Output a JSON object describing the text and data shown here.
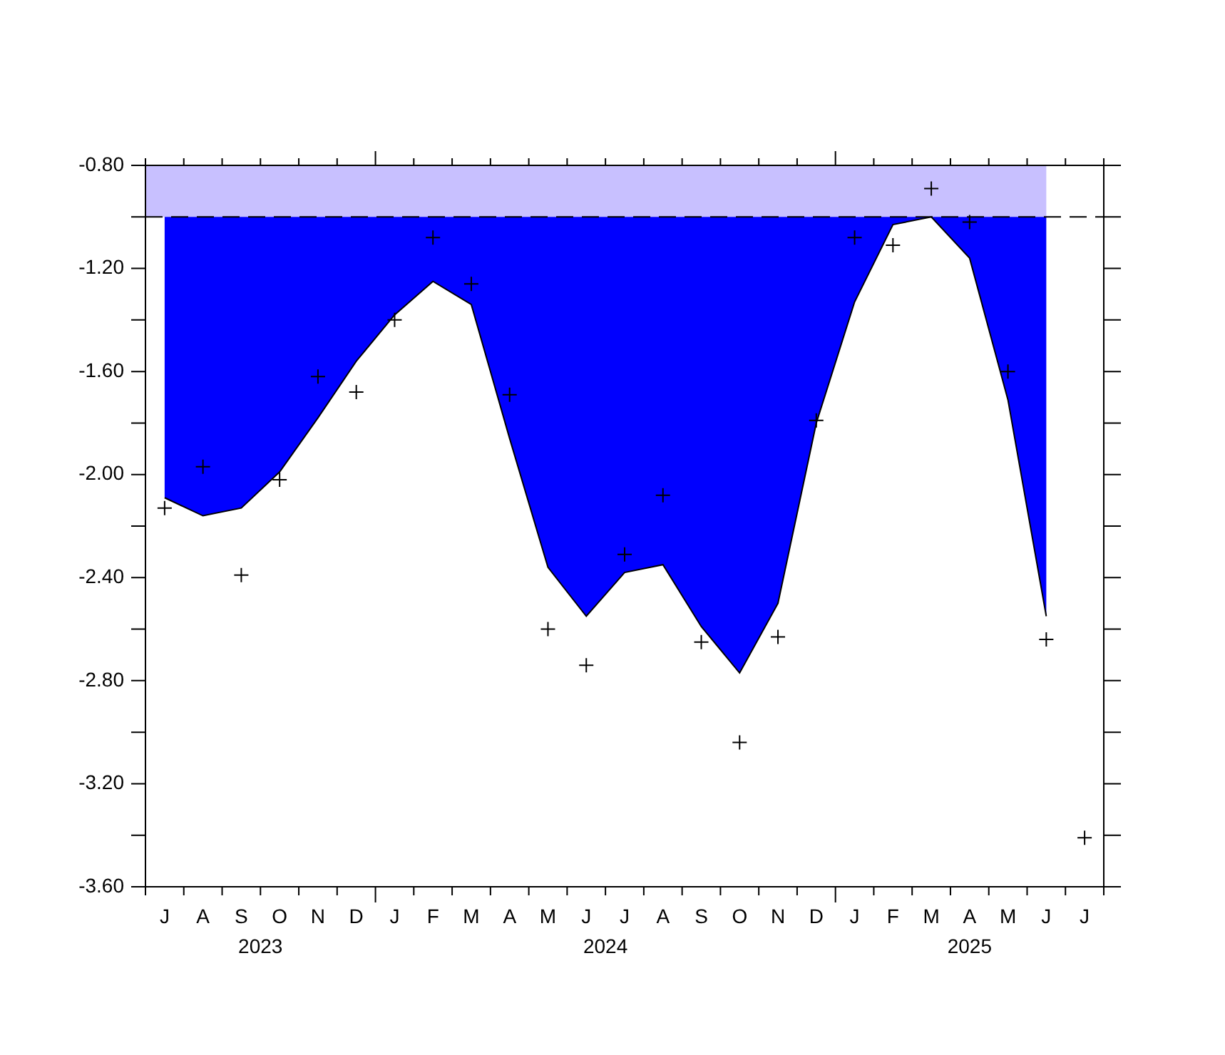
{
  "chart_data": {
    "type": "area",
    "categories": [
      "J",
      "A",
      "S",
      "O",
      "N",
      "D",
      "J",
      "F",
      "M",
      "A",
      "M",
      "J",
      "J",
      "A",
      "S",
      "O",
      "N",
      "D",
      "J",
      "F",
      "M",
      "A",
      "M",
      "J",
      "J"
    ],
    "x2lim": [
      "2023-07-01",
      "2025-08-01"
    ],
    "x2ticks": [
      {
        "value": "2023-10-01",
        "label": "2023"
      },
      {
        "value": "2024-07-01",
        "label": "2024"
      },
      {
        "value": "2025-04-16",
        "label": "2025"
      }
    ],
    "ylim": [
      -3.6,
      -0.8
    ],
    "yticks": [
      {
        "value": -0.8,
        "label": "-0.80"
      },
      {
        "value": -1.0,
        "label": null
      },
      {
        "value": -1.2,
        "label": "-1.20"
      },
      {
        "value": -1.4,
        "label": null
      },
      {
        "value": -1.6,
        "label": "-1.60"
      },
      {
        "value": -1.8,
        "label": null
      },
      {
        "value": -2.0,
        "label": "-2.00"
      },
      {
        "value": -2.2,
        "label": null
      },
      {
        "value": -2.4,
        "label": "-2.40"
      },
      {
        "value": -2.6,
        "label": null
      },
      {
        "value": -2.8,
        "label": "-2.80"
      },
      {
        "value": -3.0,
        "label": null
      },
      {
        "value": -3.2,
        "label": "-3.20"
      },
      {
        "value": -3.4,
        "label": null
      },
      {
        "value": -3.6,
        "label": "-3.60"
      }
    ],
    "series": [
      {
        "color": "#0000ff",
        "values": [
          -2.09,
          -2.16,
          -2.13,
          -1.99,
          -1.78,
          -1.56,
          -1.38,
          -1.25,
          -1.34,
          -1.86,
          -2.36,
          -2.55,
          -2.38,
          -2.35,
          -2.59,
          -2.77,
          -2.5,
          -1.8,
          -1.33,
          -1.03,
          -1.0,
          -1.16,
          -1.71,
          -2.55,
          null
        ]
      },
      {
        "type": "scatter",
        "color": "#000000",
        "marker": "cross",
        "values": [
          -2.13,
          -1.97,
          -2.39,
          -2.02,
          -1.62,
          -1.68,
          -1.4,
          -1.08,
          -1.26,
          -1.69,
          -2.6,
          -2.74,
          -2.31,
          -2.08,
          -2.65,
          -3.04,
          -2.63,
          -1.79,
          -1.08,
          -1.11,
          -0.89,
          -1.02,
          -1.6,
          -2.64,
          -3.41
        ]
      }
    ],
    "bands": [
      {
        "axis": "y",
        "from": -1.0,
        "to": -0.8,
        "color": "#c8c0ff"
      }
    ],
    "ref_lines": [
      {
        "axis": "y",
        "value": -1.0,
        "line_style": "dashed",
        "color": "#000000"
      }
    ]
  }
}
